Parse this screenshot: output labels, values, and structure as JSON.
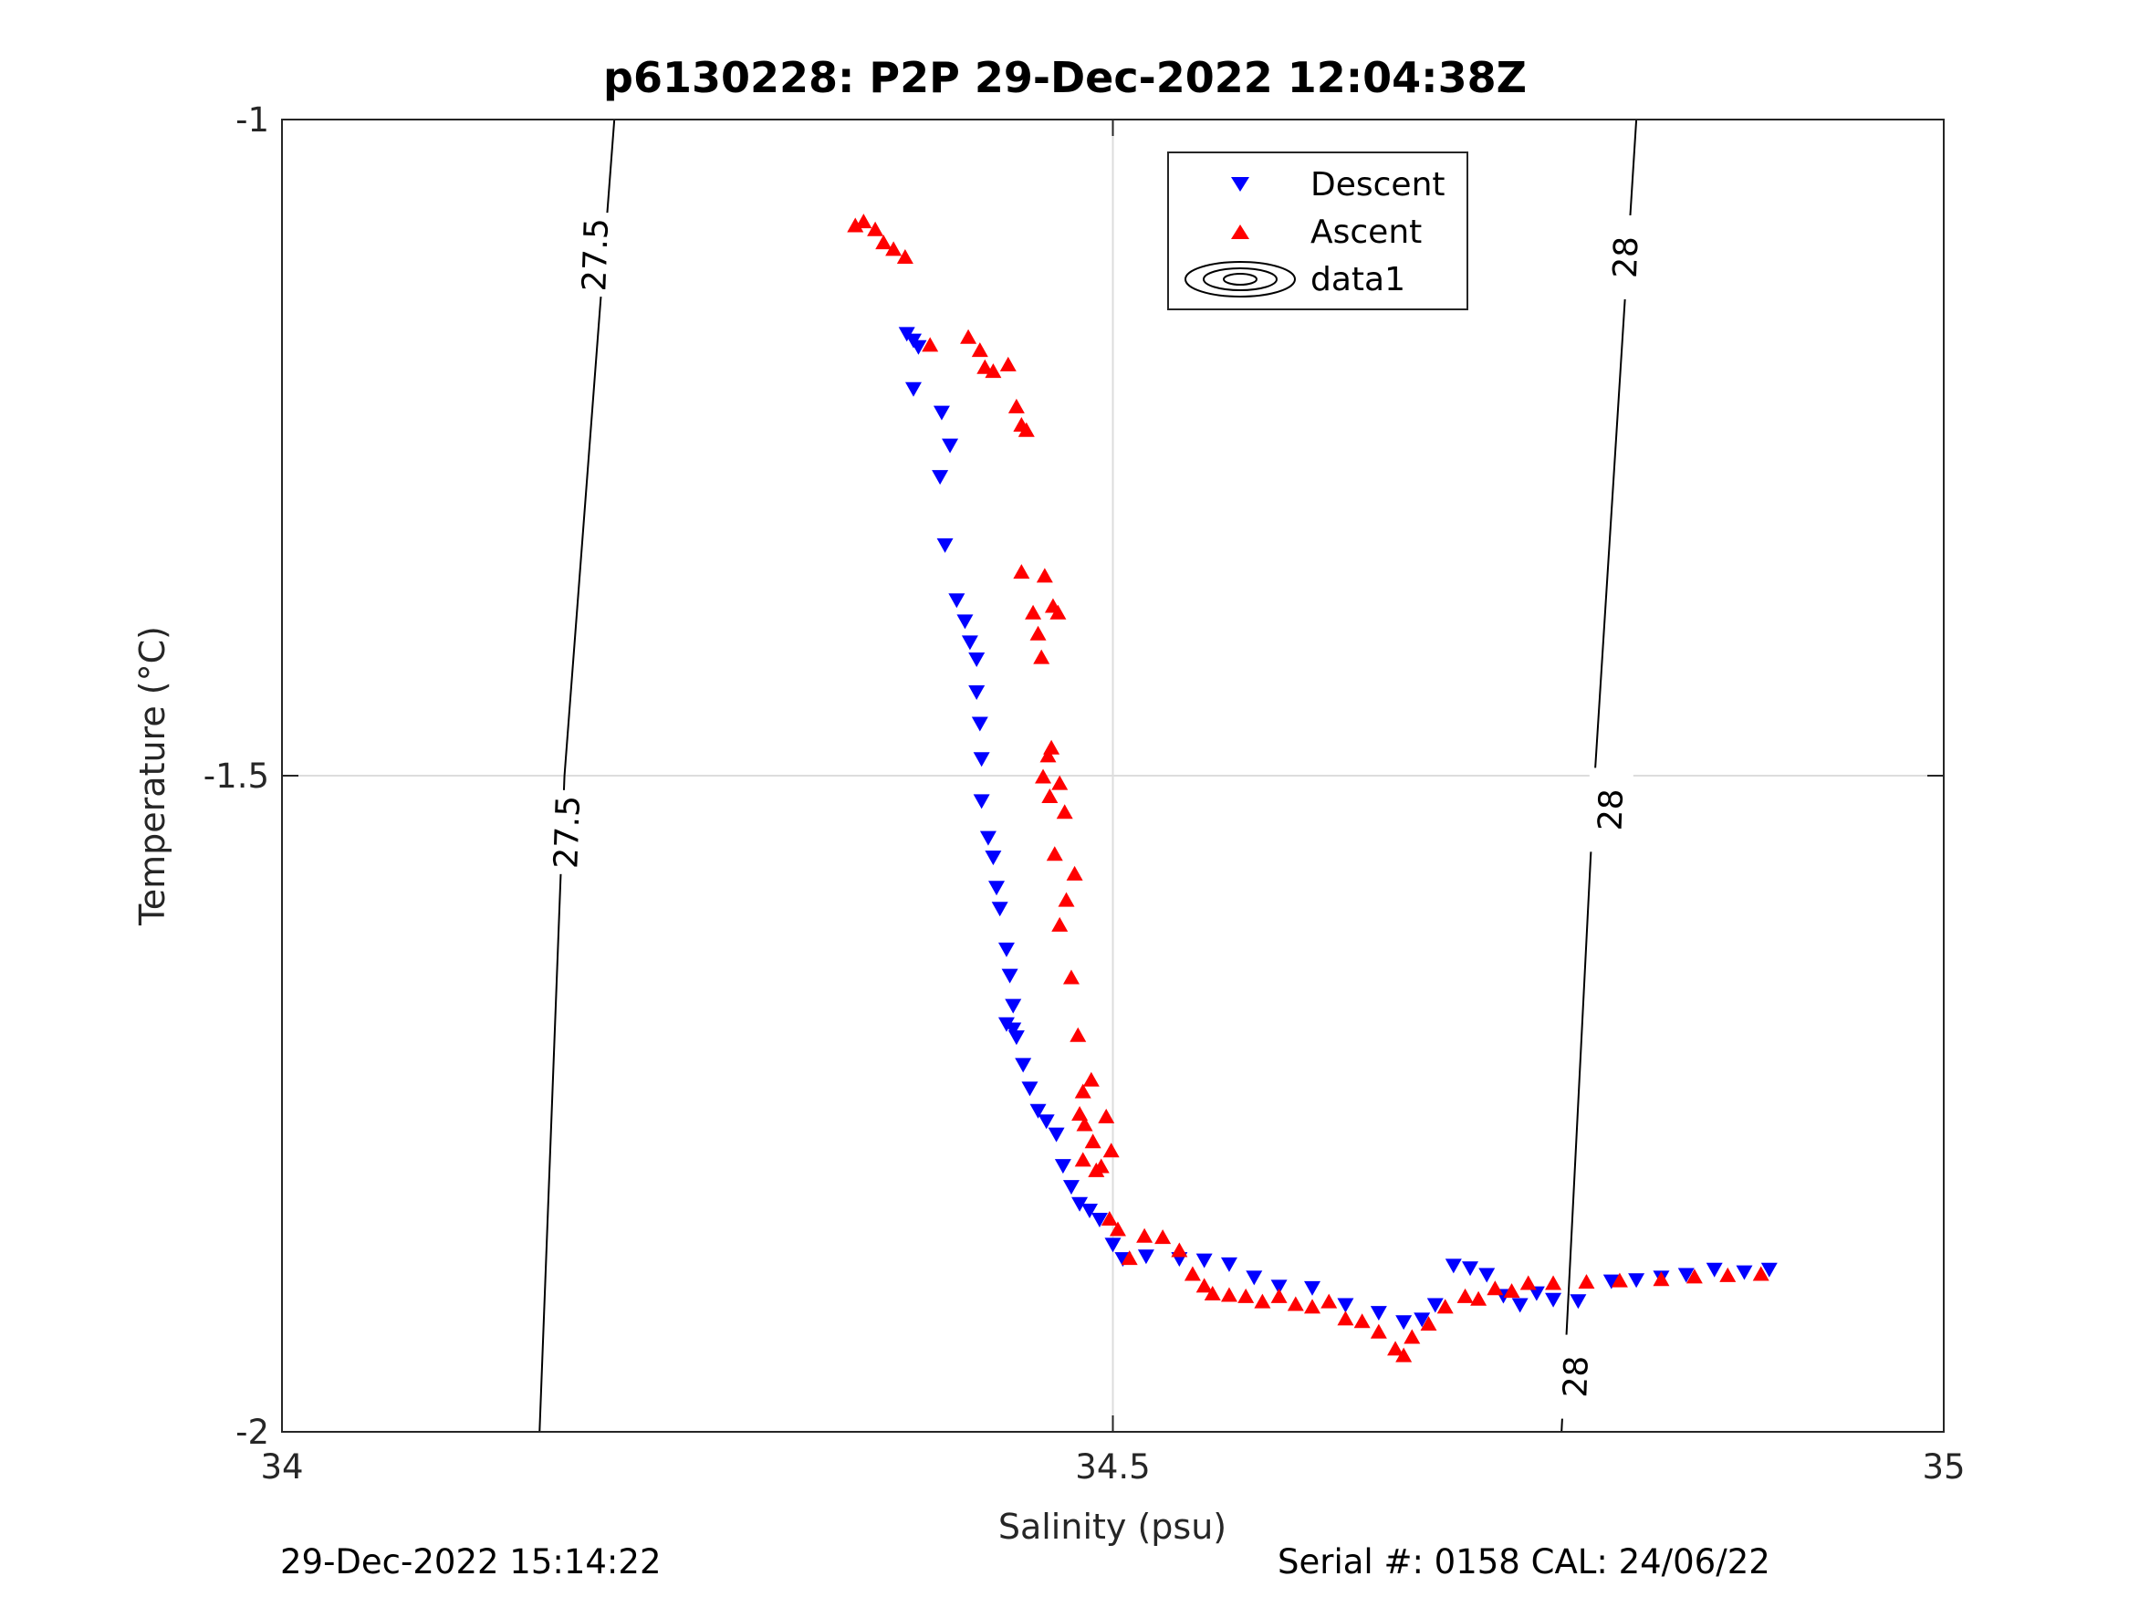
{
  "chart_data": {
    "type": "scatter",
    "title": "p6130228: P2P 29-Dec-2022 12:04:38Z",
    "xlabel": "Salinity (psu)",
    "ylabel": "Temperature (°C)",
    "xlim": [
      34,
      35
    ],
    "ylim": [
      -2,
      -1
    ],
    "x_ticks": [
      "34",
      "34.5",
      "35"
    ],
    "y_ticks": [
      "-1",
      "-1.5",
      "-2"
    ],
    "grid": true,
    "legend_position": "top-right",
    "legend": [
      "Descent",
      "Ascent",
      "data1"
    ],
    "colors": {
      "descent": "#0000ff",
      "ascent": "#ff0000",
      "contour": "#000000",
      "grid": "#dddddd"
    },
    "series": [
      {
        "name": "Descent",
        "marker": "triangle-down",
        "x": [
          34.376,
          34.38,
          34.383,
          34.38,
          34.397,
          34.402,
          34.396,
          34.399,
          34.406,
          34.411,
          34.414,
          34.418,
          34.418,
          34.42,
          34.421,
          34.421,
          34.425,
          34.428,
          34.43,
          34.432,
          34.436,
          34.438,
          34.44,
          34.436,
          34.44,
          34.442,
          34.446,
          34.45,
          34.455,
          34.46,
          34.466,
          34.47,
          34.475,
          34.48,
          34.486,
          34.492,
          34.5,
          34.506,
          34.52,
          34.54,
          34.555,
          34.57,
          34.585,
          34.6,
          34.62,
          34.64,
          34.66,
          34.675,
          34.686,
          34.694,
          34.705,
          34.715,
          34.725,
          34.735,
          34.745,
          34.755,
          34.765,
          34.78,
          34.8,
          34.815,
          34.83,
          34.845,
          34.862,
          34.88,
          34.895
        ],
        "y": [
          -1.163,
          -1.168,
          -1.173,
          -1.205,
          -1.223,
          -1.248,
          -1.272,
          -1.324,
          -1.366,
          -1.382,
          -1.398,
          -1.411,
          -1.436,
          -1.46,
          -1.487,
          -1.519,
          -1.547,
          -1.562,
          -1.585,
          -1.601,
          -1.632,
          -1.652,
          -1.675,
          -1.689,
          -1.693,
          -1.699,
          -1.72,
          -1.738,
          -1.755,
          -1.763,
          -1.773,
          -1.797,
          -1.813,
          -1.826,
          -1.831,
          -1.838,
          -1.857,
          -1.868,
          -1.866,
          -1.868,
          -1.869,
          -1.872,
          -1.882,
          -1.889,
          -1.89,
          -1.903,
          -1.909,
          -1.916,
          -1.914,
          -1.903,
          -1.873,
          -1.875,
          -1.88,
          -1.896,
          -1.903,
          -1.894,
          -1.899,
          -1.9,
          -1.885,
          -1.884,
          -1.882,
          -1.88,
          -1.876,
          -1.878,
          -1.876
        ]
      },
      {
        "name": "Ascent",
        "marker": "triangle-up",
        "x": [
          34.345,
          34.35,
          34.357,
          34.362,
          34.368,
          34.375,
          34.39,
          34.413,
          34.42,
          34.423,
          34.428,
          34.437,
          34.442,
          34.445,
          34.448,
          34.445,
          34.459,
          34.464,
          34.452,
          34.455,
          34.457,
          34.467,
          34.463,
          34.458,
          34.462,
          34.461,
          34.468,
          34.471,
          34.477,
          34.465,
          34.472,
          34.468,
          34.475,
          34.479,
          34.482,
          34.48,
          34.487,
          34.483,
          34.488,
          34.482,
          34.49,
          34.493,
          34.496,
          34.499,
          34.498,
          34.503,
          34.51,
          34.519,
          34.53,
          34.54,
          34.548,
          34.555,
          34.56,
          34.57,
          34.58,
          34.59,
          34.6,
          34.61,
          34.62,
          34.63,
          34.64,
          34.65,
          34.66,
          34.67,
          34.675,
          34.68,
          34.69,
          34.7,
          34.712,
          34.72,
          34.73,
          34.74,
          34.75,
          34.765,
          34.785,
          34.805,
          34.83,
          34.85,
          34.87,
          34.89
        ],
        "y": [
          -1.081,
          -1.078,
          -1.084,
          -1.094,
          -1.099,
          -1.105,
          -1.172,
          -1.166,
          -1.176,
          -1.189,
          -1.192,
          -1.187,
          -1.219,
          -1.233,
          -1.237,
          -1.345,
          -1.348,
          -1.371,
          -1.376,
          -1.392,
          -1.41,
          -1.376,
          -1.479,
          -1.501,
          -1.516,
          -1.485,
          -1.506,
          -1.528,
          -1.575,
          -1.56,
          -1.595,
          -1.614,
          -1.654,
          -1.698,
          -1.741,
          -1.758,
          -1.732,
          -1.766,
          -1.779,
          -1.793,
          -1.801,
          -1.798,
          -1.76,
          -1.786,
          -1.838,
          -1.846,
          -1.868,
          -1.851,
          -1.852,
          -1.862,
          -1.88,
          -1.889,
          -1.895,
          -1.896,
          -1.897,
          -1.901,
          -1.897,
          -1.903,
          -1.905,
          -1.901,
          -1.914,
          -1.916,
          -1.924,
          -1.937,
          -1.942,
          -1.928,
          -1.918,
          -1.905,
          -1.897,
          -1.899,
          -1.891,
          -1.893,
          -1.887,
          -1.887,
          -1.886,
          -1.885,
          -1.884,
          -1.882,
          -1.881,
          -1.88
        ]
      }
    ],
    "contours": [
      {
        "name": "data1",
        "level": 27.5,
        "x": [
          34.155,
          34.17,
          34.2
        ],
        "y": [
          -2.0,
          -1.5,
          -1.0
        ],
        "labels": [
          {
            "text": "27.5",
            "x": 34.172,
            "y": -1.543
          },
          {
            "text": "27.5",
            "x": 34.189,
            "y": -1.103
          }
        ]
      },
      {
        "name": "data1",
        "level": 28,
        "x": [
          34.77,
          34.79,
          34.815
        ],
        "y": [
          -2.0,
          -1.5,
          -1.0
        ],
        "labels": [
          {
            "text": "28",
            "x": 34.779,
            "y": -1.958
          },
          {
            "text": "28",
            "x": 34.8,
            "y": -1.526
          },
          {
            "text": "28",
            "x": 34.809,
            "y": -1.105
          }
        ]
      }
    ]
  },
  "footer": {
    "left": "29-Dec-2022 15:14:22",
    "right": "Serial #: 0158  CAL: 24/06/22"
  }
}
